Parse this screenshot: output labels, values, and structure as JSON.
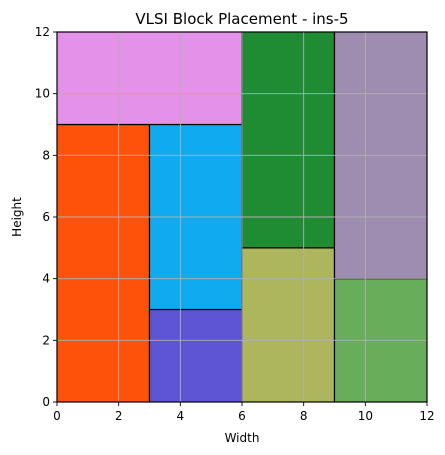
{
  "chart_data": {
    "type": "block_placement",
    "title": "VLSI Block Placement - ins-5",
    "xlabel": "Width",
    "ylabel": "Height",
    "xlim": [
      0,
      12
    ],
    "ylim": [
      0,
      12
    ],
    "xticks": [
      0,
      2,
      4,
      6,
      8,
      10,
      12
    ],
    "yticks": [
      0,
      2,
      4,
      6,
      8,
      10,
      12
    ],
    "grid": true,
    "blocks": [
      {
        "x": 0,
        "y": 0,
        "w": 3,
        "h": 9,
        "color": "#fe520b"
      },
      {
        "x": 3,
        "y": 0,
        "w": 3,
        "h": 3,
        "color": "#5d55d4"
      },
      {
        "x": 3,
        "y": 3,
        "w": 3,
        "h": 6,
        "color": "#0faaef"
      },
      {
        "x": 0,
        "y": 9,
        "w": 6,
        "h": 3,
        "color": "#e391e9"
      },
      {
        "x": 6,
        "y": 0,
        "w": 3,
        "h": 5,
        "color": "#adb65c"
      },
      {
        "x": 6,
        "y": 5,
        "w": 3,
        "h": 7,
        "color": "#1f8c33"
      },
      {
        "x": 9,
        "y": 0,
        "w": 3,
        "h": 4,
        "color": "#68ad5a"
      },
      {
        "x": 9,
        "y": 4,
        "w": 3,
        "h": 8,
        "color": "#9e8db1"
      }
    ]
  }
}
